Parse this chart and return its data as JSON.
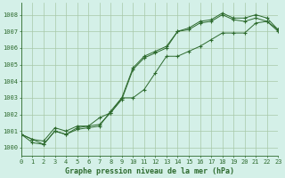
{
  "title": "Graphe pression niveau de la mer (hPa)",
  "ylim": [
    999.5,
    1008.7
  ],
  "xlim": [
    0,
    23
  ],
  "yticks": [
    1000,
    1001,
    1002,
    1003,
    1004,
    1005,
    1006,
    1007,
    1008
  ],
  "xticks": [
    0,
    1,
    2,
    3,
    4,
    5,
    6,
    7,
    8,
    9,
    10,
    11,
    12,
    13,
    14,
    15,
    16,
    17,
    18,
    19,
    20,
    21,
    22,
    23
  ],
  "bg_color": "#d4f0e8",
  "line_color": "#2d6a2d",
  "grid_color": "#a8c8a8",
  "series": [
    [
      1000.8,
      1000.5,
      1000.4,
      1001.2,
      1001.0,
      1001.3,
      1001.3,
      1001.8,
      1002.1,
      1003.0,
      1004.8,
      1005.5,
      1005.8,
      1006.1,
      1007.0,
      1007.2,
      1007.6,
      1007.7,
      1008.1,
      1007.8,
      1007.8,
      1008.0,
      1007.8,
      1007.1
    ],
    [
      1000.8,
      1000.5,
      1000.2,
      1001.0,
      1000.8,
      1001.2,
      1001.3,
      1001.4,
      1002.1,
      1002.9,
      1004.7,
      1005.4,
      1005.7,
      1006.0,
      1007.0,
      1007.1,
      1007.5,
      1007.6,
      1008.0,
      1007.7,
      1007.6,
      1007.8,
      1007.6,
      1007.0
    ],
    [
      1000.8,
      1000.3,
      1000.2,
      1001.0,
      1000.8,
      1001.1,
      1001.2,
      1001.3,
      1002.2,
      1003.0,
      1003.0,
      1003.5,
      1004.5,
      1005.5,
      1005.5,
      1005.8,
      1006.1,
      1006.5,
      1006.9,
      1006.9,
      1006.9,
      1007.5,
      1007.6,
      1007.1
    ]
  ],
  "title_fontsize": 6.0,
  "tick_fontsize": 5.0,
  "marker_size": 2.0,
  "line_width": 0.7
}
